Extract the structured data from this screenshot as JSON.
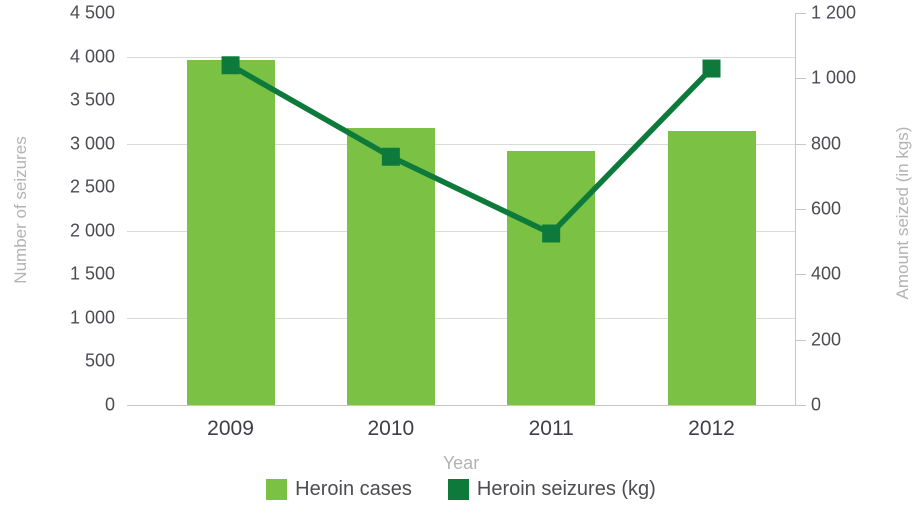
{
  "chart_data": {
    "type": "bar",
    "subtype": "combo-bar-line-dual-axis",
    "categories": [
      "2009",
      "2010",
      "2011",
      "2012"
    ],
    "series": [
      {
        "name": "Heroin cases",
        "type": "bar",
        "axis": "left",
        "color": "#7bc143",
        "values": [
          3960,
          3185,
          2920,
          3140
        ]
      },
      {
        "name": "Heroin seizures (kg)",
        "type": "line",
        "axis": "right",
        "color": "#0d7a3c",
        "marker": "square",
        "values": [
          1040,
          760,
          525,
          1030
        ]
      }
    ],
    "left_axis": {
      "label": "Number of seizures",
      "min": 0,
      "max": 4500,
      "tick_step": 500,
      "tick_values": [
        4500,
        4000,
        3500,
        3000,
        2500,
        2000,
        1500,
        1000,
        500,
        0
      ],
      "tick_labels": [
        "4 500",
        "4 000",
        "3 500",
        "3 000",
        "2 500",
        "2 000",
        "1 500",
        "1 000",
        "500",
        "0"
      ]
    },
    "right_axis": {
      "label": "Amount seized (in kgs)",
      "min": 0,
      "max": 1200,
      "tick_step": 200,
      "tick_values": [
        1200,
        1000,
        800,
        600,
        400,
        200,
        0
      ],
      "tick_labels": [
        "1 200",
        "1 000",
        "800",
        "600",
        "400",
        "200",
        "0"
      ]
    },
    "x_axis": {
      "label": "Year"
    },
    "gridline_values": [
      4000,
      3000,
      2000,
      1000
    ],
    "grid_on": true,
    "legend_position": "bottom",
    "legend": [
      {
        "label": "Heroin cases",
        "color": "#7bc143"
      },
      {
        "label": "Heroin seizures (kg)",
        "color": "#0d7a3c"
      }
    ]
  },
  "colors": {
    "bar_green": "#7bc143",
    "line_green": "#0d7a3c",
    "grid": "#d9d9d9",
    "axis": "#c6c6c6",
    "tick_text": "#4c4c55",
    "xlabel_text": "#3e3e48",
    "muted_text": "#b3b3b5",
    "legend_text": "#4c4c52",
    "background": "#ffffff"
  }
}
